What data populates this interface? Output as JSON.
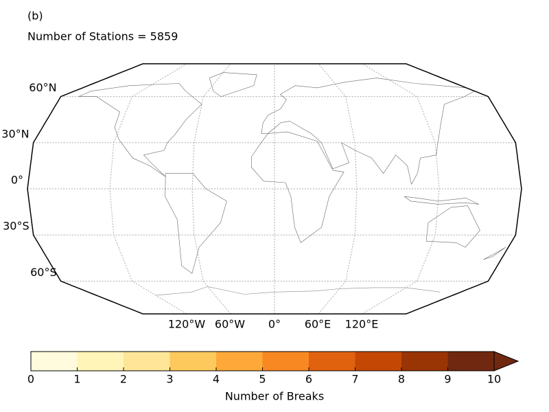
{
  "panel_label": "(b)",
  "title": "Number of Stations = 5859",
  "map": {
    "lat_labels": [
      "60°N",
      "30°N",
      "0°",
      "30°S",
      "60°S"
    ],
    "lon_labels": [
      "120°W",
      "60°W",
      "0°",
      "60°E",
      "120°E"
    ]
  },
  "colorbar": {
    "label": "Number of Breaks",
    "ticks": [
      0,
      1,
      2,
      3,
      4,
      5,
      6,
      7,
      8,
      9,
      10
    ],
    "colors": [
      "#fffbdc",
      "#fff5b8",
      "#fee597",
      "#fec95c",
      "#fea839",
      "#f78822",
      "#e0620f",
      "#c44804",
      "#993404",
      "#702810"
    ],
    "extend": "max"
  }
}
